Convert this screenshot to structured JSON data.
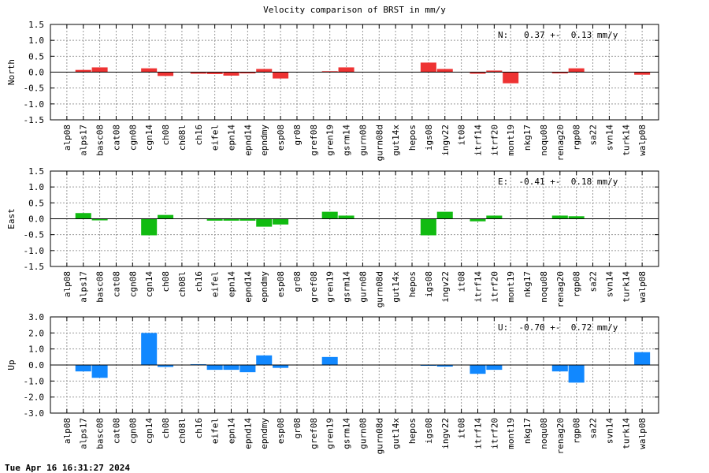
{
  "title": "Velocity comparison of BRST in mm/y",
  "timestamp": "Tue Apr 16 16:31:27 2024",
  "chart_data": [
    {
      "type": "bar",
      "ylabel": "North",
      "annotation": "N:   0.37 +-  0.13 mm/y",
      "color": "#ee3333",
      "ylim": [
        -1.5,
        1.5
      ],
      "yticks": [
        -1.5,
        -1.0,
        -0.5,
        0.0,
        0.5,
        1.0,
        1.5
      ],
      "ytick_labels": [
        "-1.5",
        "-1.0",
        "-0.5",
        "0.0",
        "0.5",
        "1.0",
        "1.5"
      ],
      "grid": true,
      "categories": [
        "alp08",
        "alps17",
        "basc08",
        "cat08",
        "cgn08",
        "cgn14",
        "ch08",
        "ch08l",
        "ch16",
        "eifel",
        "epn14",
        "epnd14",
        "epndmy",
        "esp08",
        "gr08",
        "gref08",
        "gren19",
        "gsrm14",
        "gurn08",
        "gurn08d",
        "gut14x",
        "hepos",
        "igs08",
        "ingv22",
        "it08",
        "itrf14",
        "itrf20",
        "mont19",
        "nkg17",
        "noqu08",
        "renag20",
        "rgp08",
        "sa22",
        "svn14",
        "turk14",
        "walp08"
      ],
      "values": [
        0,
        0.07,
        0.15,
        0,
        0,
        0.12,
        -0.12,
        0,
        -0.05,
        -0.06,
        -0.11,
        -0.04,
        0.1,
        -0.2,
        0,
        0,
        0.03,
        0.15,
        0,
        0,
        0,
        0,
        0.3,
        0.1,
        0,
        -0.05,
        0.05,
        -0.35,
        0,
        0,
        -0.04,
        0.12,
        0,
        0,
        0,
        -0.08
      ]
    },
    {
      "type": "bar",
      "ylabel": "East",
      "annotation": "E:  -0.41 +-  0.18 mm/y",
      "color": "#11bb11",
      "ylim": [
        -1.5,
        1.5
      ],
      "yticks": [
        -1.5,
        -1.0,
        -0.5,
        0.0,
        0.5,
        1.0,
        1.5
      ],
      "ytick_labels": [
        "-1.5",
        "-1.0",
        "-0.5",
        "0.0",
        "0.5",
        "1.0",
        "1.5"
      ],
      "grid": true,
      "categories": [
        "alp08",
        "alps17",
        "basc08",
        "cat08",
        "cgn08",
        "cgn14",
        "ch08",
        "ch08l",
        "ch16",
        "eifel",
        "epn14",
        "epnd14",
        "epndmy",
        "esp08",
        "gr08",
        "gref08",
        "gren19",
        "gsrm14",
        "gurn08",
        "gurn08d",
        "gut14x",
        "hepos",
        "igs08",
        "ingv22",
        "it08",
        "itrf14",
        "itrf20",
        "mont19",
        "nkg17",
        "noqu08",
        "renag20",
        "rgp08",
        "sa22",
        "svn14",
        "turk14",
        "walp08"
      ],
      "values": [
        0,
        0.18,
        -0.05,
        0,
        0,
        -0.52,
        0.12,
        0,
        0,
        -0.06,
        -0.06,
        -0.06,
        -0.25,
        -0.18,
        0,
        0,
        0.22,
        0.1,
        0,
        0,
        0,
        0,
        -0.52,
        0.22,
        0,
        -0.08,
        0.1,
        0,
        0,
        0,
        0.1,
        0.08,
        0,
        0,
        0,
        0
      ]
    },
    {
      "type": "bar",
      "ylabel": "Up",
      "annotation": "U:  -0.70 +-  0.72 mm/y",
      "color": "#1188ff",
      "ylim": [
        -3.0,
        3.0
      ],
      "yticks": [
        -3.0,
        -2.0,
        -1.0,
        0.0,
        1.0,
        2.0,
        3.0
      ],
      "ytick_labels": [
        "-3.0",
        "-2.0",
        "-1.0",
        "0.0",
        "1.0",
        "2.0",
        "3.0"
      ],
      "grid": true,
      "categories": [
        "alp08",
        "alps17",
        "basc08",
        "cat08",
        "cgn08",
        "cgn14",
        "ch08",
        "ch08l",
        "ch16",
        "eifel",
        "epn14",
        "epnd14",
        "epndmy",
        "esp08",
        "gr08",
        "gref08",
        "gren19",
        "gsrm14",
        "gurn08",
        "gurn08d",
        "gut14x",
        "hepos",
        "igs08",
        "ingv22",
        "it08",
        "itrf14",
        "itrf20",
        "mont19",
        "nkg17",
        "noqu08",
        "renag20",
        "rgp08",
        "sa22",
        "svn14",
        "turk14",
        "walp08"
      ],
      "values": [
        0,
        -0.4,
        -0.8,
        0,
        0,
        2.0,
        -0.12,
        0,
        0.05,
        -0.3,
        -0.3,
        -0.45,
        0.6,
        -0.18,
        0,
        0,
        0.5,
        0,
        0,
        0,
        0,
        0,
        -0.05,
        -0.1,
        0,
        -0.55,
        -0.3,
        0,
        0,
        0,
        -0.4,
        -1.1,
        0,
        0,
        0,
        0.8
      ]
    }
  ]
}
